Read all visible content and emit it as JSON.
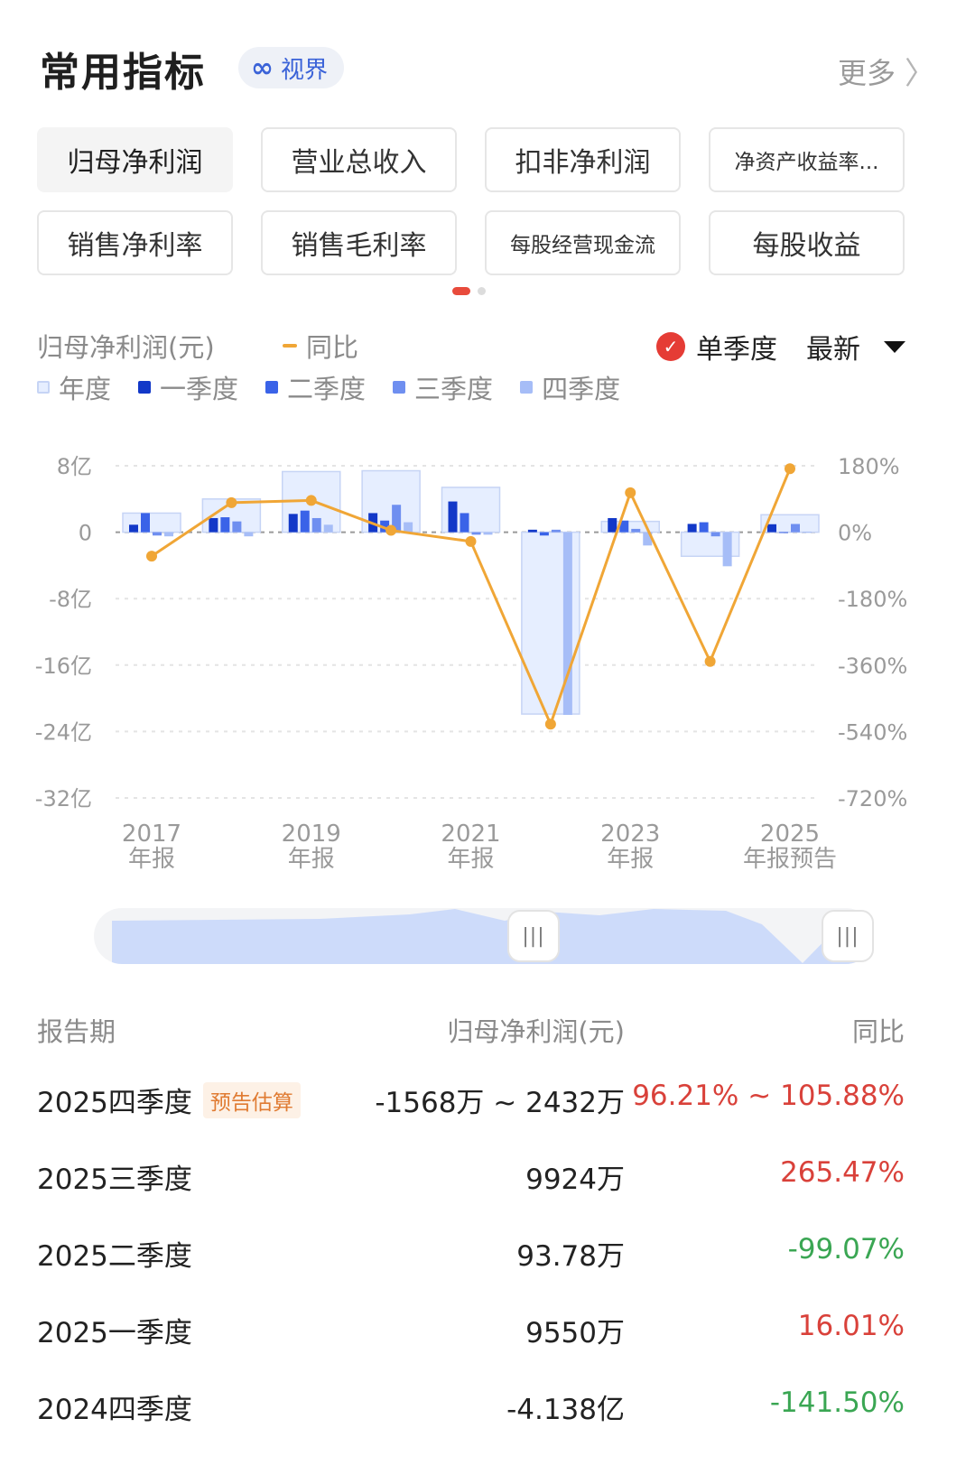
{
  "header": {
    "title": "常用指标",
    "view_icon": "∞",
    "view_label": "视界",
    "more_label": "更多",
    "more_icon": "〉"
  },
  "metric_buttons": [
    {
      "label": "归母净利润",
      "active": true
    },
    {
      "label": "营业总收入",
      "active": false
    },
    {
      "label": "扣非净利润",
      "active": false
    },
    {
      "label": "净资产收益率...",
      "active": false
    },
    {
      "label": "销售净利率",
      "active": false
    },
    {
      "label": "销售毛利率",
      "active": false
    },
    {
      "label": "每股经营现金流",
      "active": false
    },
    {
      "label": "每股收益",
      "active": false
    }
  ],
  "chart_controls": {
    "metric_name": "归母净利润(元)",
    "yoy_legend": "同比",
    "single_quarter_label": "单季度",
    "single_quarter_checked": true,
    "period_select": "最新",
    "legend": [
      {
        "name": "年度",
        "color": "#e6eeff"
      },
      {
        "name": "一季度",
        "color": "#1238c8"
      },
      {
        "name": "二季度",
        "color": "#3a63e8"
      },
      {
        "name": "三季度",
        "color": "#6f8ff0"
      },
      {
        "name": "四季度",
        "color": "#a6bdf7"
      }
    ]
  },
  "chart_data": {
    "type": "bar",
    "left_axis": {
      "ticks": [
        "8亿",
        "0",
        "-8亿",
        "-16亿",
        "-24亿",
        "-32亿"
      ],
      "min": -32,
      "max": 8,
      "unit": "亿"
    },
    "right_axis": {
      "ticks": [
        "180%",
        "0%",
        "-180%",
        "-360%",
        "-540%",
        "-720%"
      ],
      "min": -720,
      "max": 180
    },
    "x_tick_labels": [
      [
        "2017",
        "年报"
      ],
      [
        "2019",
        "年报"
      ],
      [
        "2021",
        "年报"
      ],
      [
        "2023",
        "年报"
      ],
      [
        "2025",
        "年报预告"
      ]
    ],
    "x_tick_years": [
      2017,
      2019,
      2021,
      2023,
      2025
    ],
    "years": [
      2017,
      2018,
      2019,
      2020,
      2021,
      2022,
      2023,
      2024,
      2025
    ],
    "series": [
      {
        "name": "年度",
        "values": [
          2.3,
          4.0,
          7.3,
          7.4,
          5.4,
          -21.9,
          1.3,
          -2.9,
          2.1
        ]
      },
      {
        "name": "一季度",
        "values": [
          0.9,
          1.7,
          2.2,
          2.3,
          3.7,
          0.3,
          1.7,
          1.0,
          0.96
        ]
      },
      {
        "name": "二季度",
        "values": [
          2.3,
          1.8,
          2.6,
          1.4,
          2.3,
          -0.4,
          1.4,
          1.2,
          0.01
        ]
      },
      {
        "name": "三季度",
        "values": [
          -0.4,
          1.3,
          1.7,
          3.3,
          -0.3,
          0.3,
          0.4,
          -0.5,
          0.99
        ]
      },
      {
        "name": "四季度",
        "values": [
          -0.5,
          -0.5,
          0.9,
          1.2,
          -0.3,
          -22.0,
          -1.6,
          -4.1,
          0.04
        ]
      }
    ],
    "yoy": {
      "name": "同比",
      "values": [
        -65,
        80,
        86,
        5,
        -25,
        -520,
        107,
        -350,
        172
      ]
    }
  },
  "table": {
    "headers": {
      "period": "报告期",
      "value": "归母净利润(元)",
      "yoy": "同比"
    },
    "rows": [
      {
        "period": "2025四季度",
        "tag": "预告估算",
        "value": "-1568万 ~ 2432万",
        "yoy": "96.21% ~ 105.88%",
        "trend": "up"
      },
      {
        "period": "2025三季度",
        "tag": "",
        "value": "9924万",
        "yoy": "265.47%",
        "trend": "up"
      },
      {
        "period": "2025二季度",
        "tag": "",
        "value": "93.78万",
        "yoy": "-99.07%",
        "trend": "down"
      },
      {
        "period": "2025一季度",
        "tag": "",
        "value": "9550万",
        "yoy": "16.01%",
        "trend": "up"
      },
      {
        "period": "2024四季度",
        "tag": "",
        "value": "-4.138亿",
        "yoy": "-141.50%",
        "trend": "down"
      }
    ]
  }
}
